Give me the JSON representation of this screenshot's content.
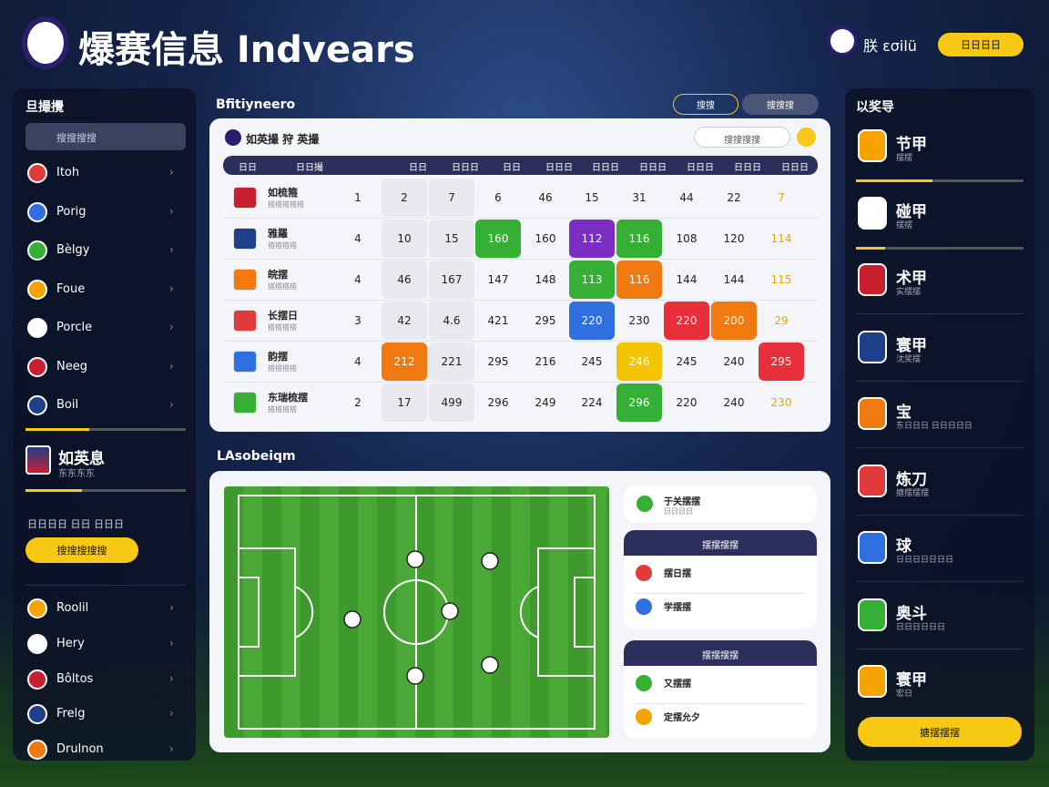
{
  "header": {
    "title": "爆赛信息 Indvears",
    "user": "朕 εσilü",
    "button": "日日日日"
  },
  "left_panel": {
    "title": "旦撮攪",
    "search": "搜搜搜搜",
    "items": [
      "Itoh",
      "Porig",
      "Bèlgy",
      "Foue",
      "Porcle",
      "Neeg",
      "Boil"
    ],
    "featured": {
      "name": "如英息",
      "sub": "东东东东"
    },
    "note": "日日日日 日日 日日日",
    "button": "搜搜搜搜搜",
    "more_items": [
      "Roolil",
      "Hery",
      "Bôltos",
      "Frelg",
      "Drulnon"
    ]
  },
  "table_section": {
    "title": "Bfitiyneero",
    "tabs": [
      "搜搜",
      "搜搜搜"
    ],
    "card_title": "如英撮 狩 英撮",
    "search": "搜搜搜搜",
    "columns": [
      "日日",
      "日日撮",
      "日日",
      "日日日",
      "日日",
      "日日日",
      "日日日",
      "日日日",
      "日日日",
      "日日日",
      "日日日"
    ],
    "rows": [
      {
        "name": "如梳箍",
        "sub": "搭搭搭搭搭",
        "cells": [
          "1",
          "2",
          "7",
          "6",
          "46",
          "15",
          "31",
          "44",
          "22",
          {
            "text": "7",
            "color": "#e8a800"
          }
        ]
      },
      {
        "name": "雅羅",
        "sub": "搭搭搭搭",
        "cells": [
          "4",
          "10",
          "15",
          {
            "text": "160",
            "fill": "#36b034"
          },
          "160",
          {
            "text": "112",
            "fill": "#7b2fc2"
          },
          {
            "text": "116",
            "fill": "#36b034"
          },
          "108",
          "120",
          {
            "text": "114",
            "color": "#e8a800"
          }
        ]
      },
      {
        "name": "皖摆",
        "sub": "搭搭搭搭",
        "cells": [
          "4",
          "46",
          "167",
          "147",
          "148",
          {
            "text": "113",
            "fill": "#36b034"
          },
          {
            "text": "116",
            "fill": "#f07a10"
          },
          "144",
          "144",
          {
            "text": "115",
            "color": "#e8a800"
          }
        ]
      },
      {
        "name": "长摆日",
        "sub": "搭搭搭搭",
        "cells": [
          "3",
          "42",
          "4.6",
          "421",
          "295",
          {
            "text": "220",
            "fill": "#2f6fe0"
          },
          "230",
          {
            "text": "220",
            "fill": "#e8303c"
          },
          {
            "text": "200",
            "fill": "#f07a10"
          },
          {
            "text": "29",
            "color": "#e8a800"
          }
        ]
      },
      {
        "name": "韵摆",
        "sub": "搭搭搭搭",
        "cells": [
          "4",
          {
            "text": "212",
            "fill": "#f07a10"
          },
          "221",
          "295",
          "216",
          "245",
          {
            "text": "246",
            "fill": "#f5c400"
          },
          "245",
          "240",
          {
            "text": "295",
            "fill": "#e8303c"
          }
        ]
      },
      {
        "name": "东瑞梳摆",
        "sub": "搭搭搭搭",
        "cells": [
          "2",
          "17",
          "499",
          "296",
          "249",
          "224",
          {
            "text": "296",
            "fill": "#36b034"
          },
          "220",
          "240",
          {
            "text": "230",
            "color": "#e8a800"
          }
        ]
      }
    ]
  },
  "pitch_section": {
    "title": "LAsobeiqm",
    "top_match": {
      "name": "于关摆摆",
      "sub": "日日日日"
    },
    "groups": [
      {
        "title": "摆摆摆摆",
        "items": [
          "摆日摆",
          "学摆摆"
        ]
      },
      {
        "title": "摆摆摆摆",
        "items": [
          "又摆摆",
          "定摆允夕"
        ]
      }
    ]
  },
  "right_panel": {
    "title": "以奖导",
    "items": [
      {
        "name": "节甲",
        "sub": "摆摆"
      },
      {
        "name": "碰甲",
        "sub": "摆摆"
      },
      {
        "name": "术甲",
        "sub": "实摆摆"
      },
      {
        "name": "寰甲",
        "sub": "沈奖摆"
      },
      {
        "name": "宝",
        "sub": "东日日日 日日日日日"
      },
      {
        "name": "炼刀",
        "sub": "搪摆摆摆"
      },
      {
        "name": "球",
        "sub": "日日日日日日日"
      },
      {
        "name": "奥斗",
        "sub": "日日日日日日"
      },
      {
        "name": "寰甲",
        "sub": "宏日"
      }
    ],
    "button": "搪摆摆摆"
  }
}
